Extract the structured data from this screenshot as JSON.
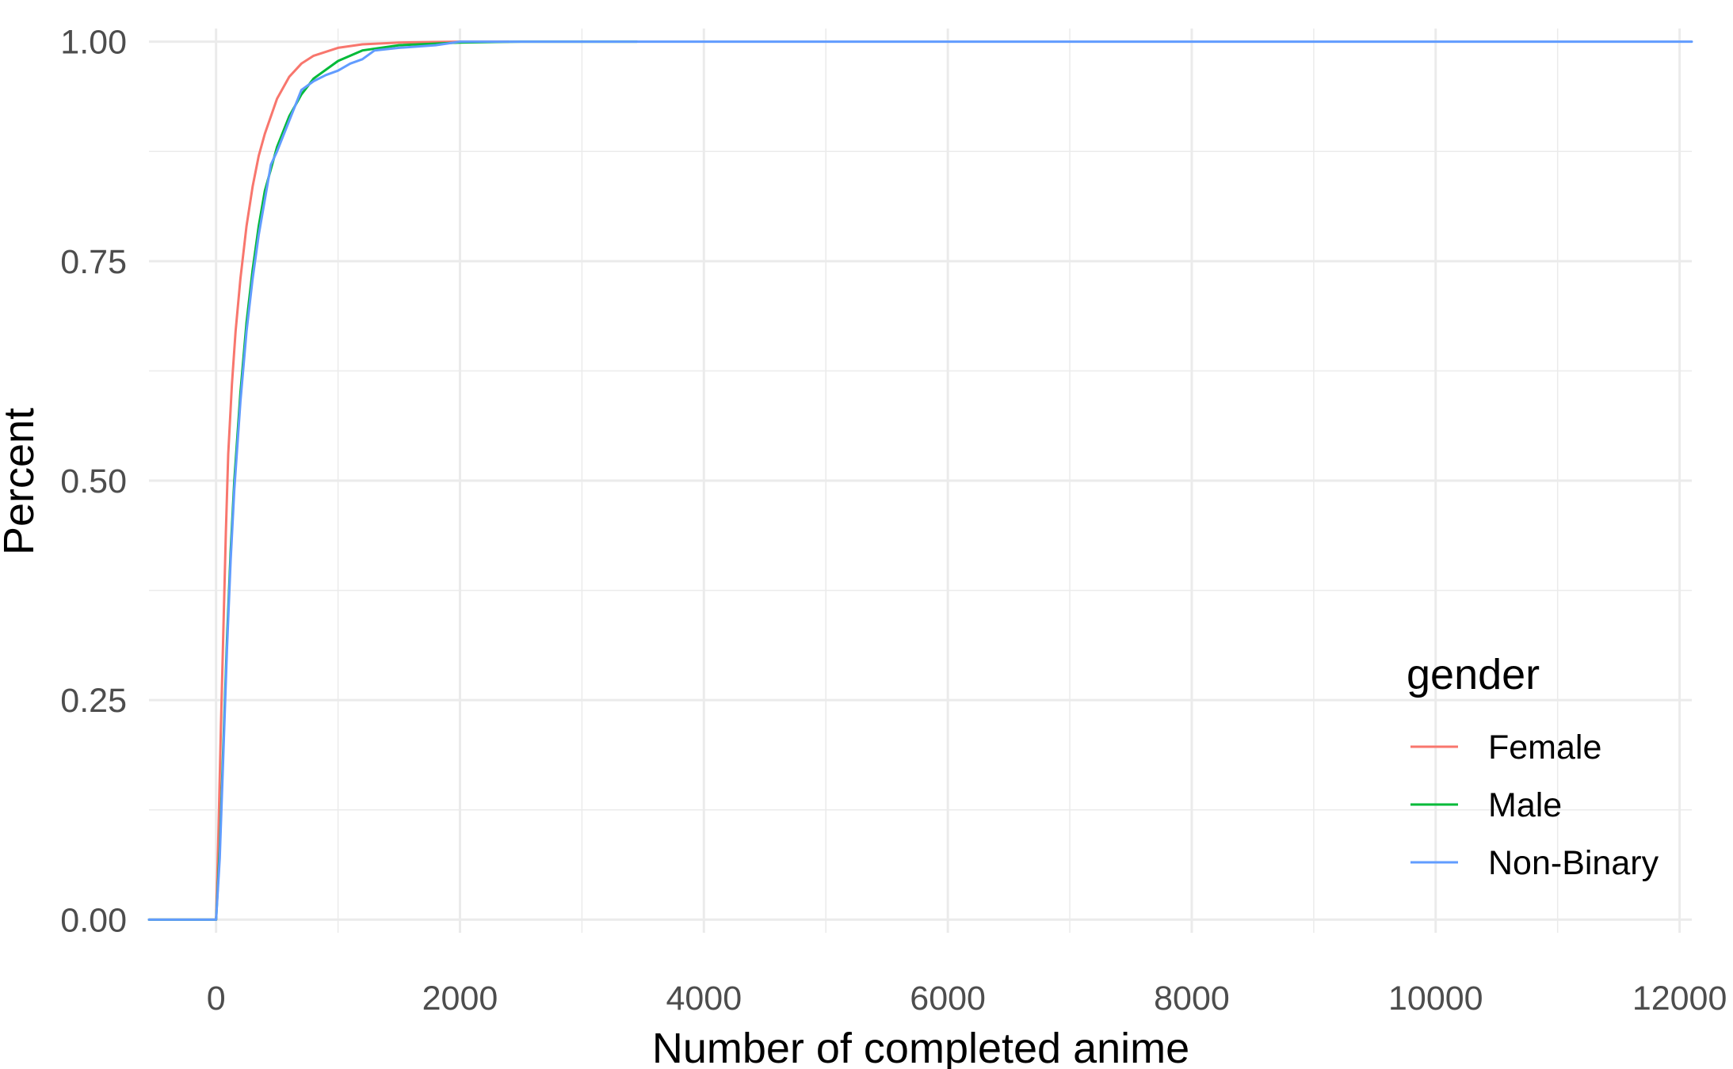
{
  "chart_data": {
    "type": "line",
    "title": "",
    "xlabel": "Number of completed anime",
    "ylabel": "Percent",
    "xlim": [
      -550,
      12100
    ],
    "ylim": [
      -0.015,
      1.015
    ],
    "x_ticks": [
      0,
      2000,
      4000,
      6000,
      8000,
      10000,
      12000
    ],
    "x_tick_labels": [
      "0",
      "2000",
      "4000",
      "6000",
      "8000",
      "10000",
      "12000"
    ],
    "x_minor_ticks": [
      1000,
      3000,
      5000,
      7000,
      9000,
      11000
    ],
    "y_ticks": [
      0,
      0.25,
      0.5,
      0.75,
      1.0
    ],
    "y_tick_labels": [
      "0.00",
      "0.25",
      "0.50",
      "0.75",
      "1.00"
    ],
    "y_minor_ticks": [
      0.125,
      0.375,
      0.625,
      0.875
    ],
    "grid": true,
    "legend": {
      "title": "gender",
      "position": "right",
      "entries": [
        "Female",
        "Male",
        "Non-Binary"
      ]
    },
    "series": [
      {
        "name": "Female",
        "color": "#F8766D",
        "points": [
          [
            -550,
            0
          ],
          [
            0,
            0
          ],
          [
            20,
            0.1
          ],
          [
            40,
            0.22
          ],
          [
            60,
            0.33
          ],
          [
            80,
            0.44
          ],
          [
            100,
            0.53
          ],
          [
            130,
            0.61
          ],
          [
            160,
            0.67
          ],
          [
            200,
            0.73
          ],
          [
            250,
            0.79
          ],
          [
            300,
            0.835
          ],
          [
            350,
            0.87
          ],
          [
            400,
            0.895
          ],
          [
            500,
            0.935
          ],
          [
            600,
            0.96
          ],
          [
            700,
            0.975
          ],
          [
            800,
            0.984
          ],
          [
            1000,
            0.993
          ],
          [
            1200,
            0.997
          ],
          [
            1500,
            0.999
          ],
          [
            2000,
            1.0
          ],
          [
            2400,
            1.0
          ]
        ]
      },
      {
        "name": "Male",
        "color": "#00BA38",
        "points": [
          [
            -550,
            0
          ],
          [
            0,
            0
          ],
          [
            30,
            0.08
          ],
          [
            60,
            0.2
          ],
          [
            90,
            0.32
          ],
          [
            120,
            0.42
          ],
          [
            150,
            0.5
          ],
          [
            200,
            0.6
          ],
          [
            250,
            0.68
          ],
          [
            300,
            0.74
          ],
          [
            350,
            0.79
          ],
          [
            400,
            0.83
          ],
          [
            500,
            0.88
          ],
          [
            600,
            0.915
          ],
          [
            700,
            0.94
          ],
          [
            800,
            0.958
          ],
          [
            1000,
            0.978
          ],
          [
            1200,
            0.99
          ],
          [
            1500,
            0.996
          ],
          [
            2000,
            0.999
          ],
          [
            2500,
            1.0
          ],
          [
            3450,
            1.0
          ]
        ]
      },
      {
        "name": "Non-Binary",
        "color": "#619CFF",
        "points": [
          [
            -550,
            0
          ],
          [
            0,
            0
          ],
          [
            30,
            0.07
          ],
          [
            60,
            0.19
          ],
          [
            90,
            0.31
          ],
          [
            120,
            0.41
          ],
          [
            150,
            0.49
          ],
          [
            200,
            0.59
          ],
          [
            250,
            0.67
          ],
          [
            300,
            0.73
          ],
          [
            350,
            0.78
          ],
          [
            400,
            0.82
          ],
          [
            450,
            0.86
          ],
          [
            500,
            0.875
          ],
          [
            600,
            0.91
          ],
          [
            700,
            0.945
          ],
          [
            800,
            0.955
          ],
          [
            900,
            0.962
          ],
          [
            1000,
            0.967
          ],
          [
            1100,
            0.975
          ],
          [
            1200,
            0.98
          ],
          [
            1300,
            0.99
          ],
          [
            1500,
            0.993
          ],
          [
            1800,
            0.996
          ],
          [
            2000,
            1.0
          ],
          [
            12100,
            1.0
          ]
        ]
      }
    ]
  }
}
